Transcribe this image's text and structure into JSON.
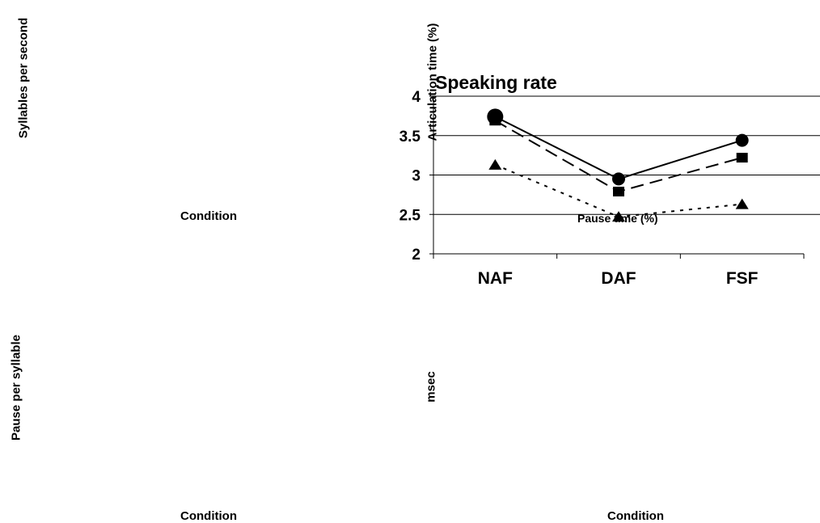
{
  "figure": {
    "ylabel_top_left": "Syllables per second",
    "xlabel_top_left": "Condition",
    "ylabel_bottom_left": "Pause per syllable",
    "xlabel_bottom_left": "Condition",
    "ylabel_bottom_right": "msec",
    "xlabel_bottom_right": "Condition",
    "ylabel_top_right": "Articulation time (%)"
  },
  "chart_data": {
    "type": "line",
    "title": "Speaking rate",
    "annotation": "Pause time (%)",
    "categories": [
      "NAF",
      "DAF",
      "FSF"
    ],
    "ylim": [
      2,
      4
    ],
    "yticks": [
      "2",
      "2.5",
      "3",
      "3.5",
      "4"
    ],
    "grid": true,
    "series": [
      {
        "values": [
          3.74,
          2.95,
          3.44
        ],
        "marker": "circle",
        "line": "solid"
      },
      {
        "values": [
          3.69,
          2.79,
          3.22
        ],
        "marker": "square",
        "line": "dashed"
      },
      {
        "values": [
          3.13,
          2.47,
          2.63
        ],
        "marker": "triangle",
        "line": "dotted"
      }
    ]
  }
}
